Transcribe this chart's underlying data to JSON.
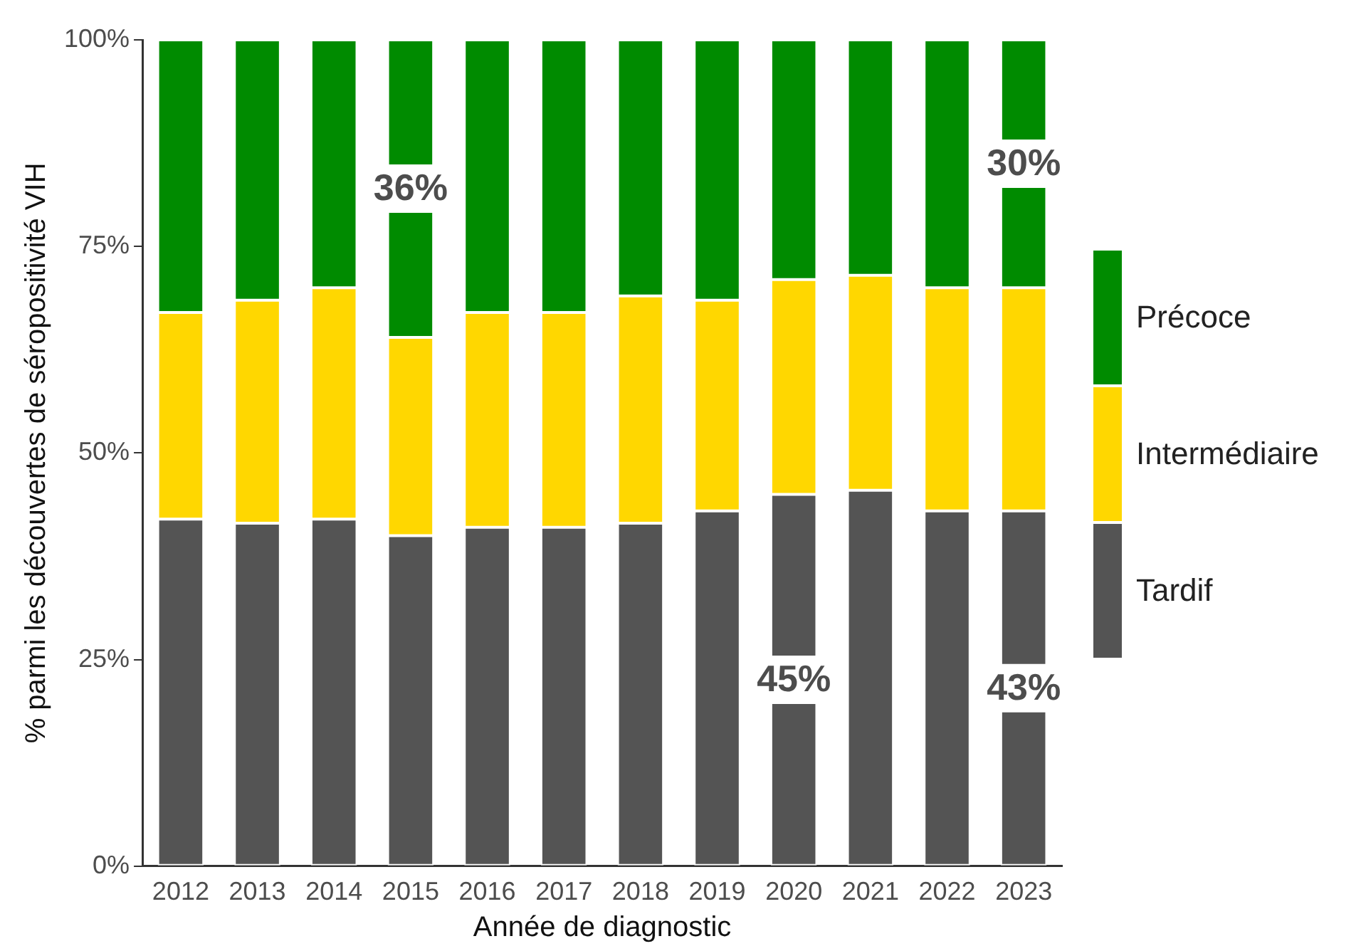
{
  "chart_data": {
    "type": "bar",
    "stacked": true,
    "xlabel": "Année de diagnostic",
    "ylabel": "% parmi les découvertes de séropositivité VIH",
    "categories": [
      "2012",
      "2013",
      "2014",
      "2015",
      "2016",
      "2017",
      "2018",
      "2019",
      "2020",
      "2021",
      "2022",
      "2023"
    ],
    "series": [
      {
        "name": "Tardif",
        "color": "#545454",
        "values": [
          42,
          41.5,
          42,
          40,
          41,
          41,
          41.5,
          43,
          45,
          45.5,
          43,
          43
        ],
        "value_labels": [
          null,
          null,
          null,
          null,
          null,
          null,
          null,
          null,
          "45%",
          null,
          null,
          "43%"
        ]
      },
      {
        "name": "Intermédiaire",
        "color": "#ffd700",
        "values": [
          25,
          27,
          28,
          24,
          26,
          26,
          27.5,
          25.5,
          26,
          26,
          27,
          27
        ]
      },
      {
        "name": "Précoce",
        "color": "#008b00",
        "values": [
          33,
          31.5,
          30,
          36,
          33,
          33,
          31,
          31.5,
          29,
          28.5,
          30,
          30
        ],
        "value_labels": [
          null,
          null,
          null,
          "36%",
          null,
          null,
          null,
          null,
          null,
          null,
          null,
          "30%"
        ]
      }
    ],
    "ylim": [
      0,
      100
    ],
    "yticks": [
      {
        "value": 0,
        "label": "0%"
      },
      {
        "value": 25,
        "label": "25%"
      },
      {
        "value": 50,
        "label": "50%"
      },
      {
        "value": 75,
        "label": "75%"
      },
      {
        "value": 100,
        "label": "100%"
      }
    ],
    "grid": false,
    "legend": "right"
  }
}
